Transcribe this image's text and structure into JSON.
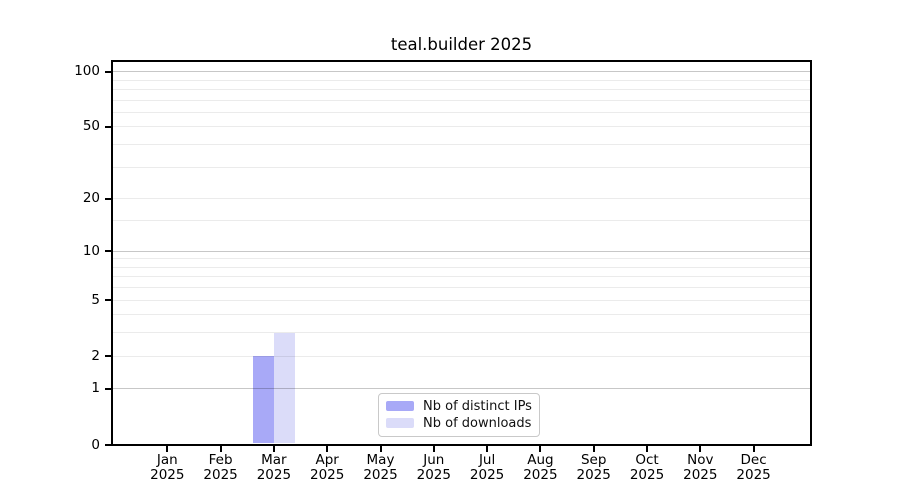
{
  "chart_data": {
    "type": "bar",
    "title": "teal.builder 2025",
    "categories": [
      "Jan",
      "Feb",
      "Mar",
      "Apr",
      "May",
      "Jun",
      "Jul",
      "Aug",
      "Sep",
      "Oct",
      "Nov",
      "Dec"
    ],
    "x_year_label": "2025",
    "series": [
      {
        "name": "Nb of distinct IPs",
        "color": "#a8a9f7",
        "values": [
          0,
          0,
          2,
          0,
          0,
          0,
          0,
          0,
          0,
          0,
          0,
          0
        ]
      },
      {
        "name": "Nb of downloads",
        "color": "#dbdcf9",
        "values": [
          0,
          0,
          3,
          0,
          0,
          0,
          0,
          0,
          0,
          0,
          0,
          0
        ]
      }
    ],
    "y_axis": {
      "scale": "symlog",
      "tick_labels": [
        "0",
        "1",
        "2",
        "5",
        "10",
        "20",
        "50",
        "100"
      ],
      "tick_values": [
        0,
        1,
        2,
        5,
        10,
        20,
        50,
        100
      ],
      "decade_gridlines": [
        1,
        10,
        100
      ],
      "minor_gridlines": [
        3,
        4,
        6,
        7,
        8,
        9,
        15,
        30,
        40,
        60,
        70,
        80,
        90
      ],
      "range": [
        0,
        115
      ]
    },
    "legend": {
      "entries": [
        "Nb of distinct IPs",
        "Nb of downloads"
      ],
      "position": "bottom-center"
    },
    "grid": true
  }
}
